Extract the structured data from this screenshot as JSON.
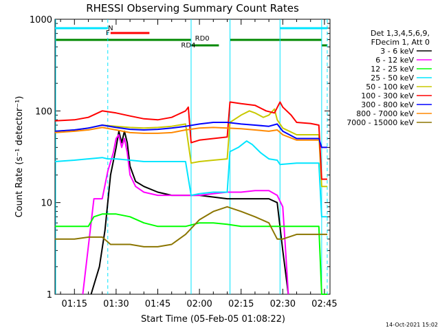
{
  "chart_data": {
    "type": "line",
    "title": "RHESSI Observing Summary Count Rates",
    "xlabel": "Start Time (05-Feb-05 01:08:22)",
    "ylabel": "Count Rate (s⁻¹ detector⁻¹)",
    "y_scale": "log",
    "ylim": [
      1,
      1000
    ],
    "xlim": [
      "01:08:22",
      "02:47:00"
    ],
    "x_ticks": [
      "01:15",
      "01:30",
      "01:45",
      "02:00",
      "02:15",
      "02:30",
      "02:45"
    ],
    "y_ticks": [
      "1",
      "10",
      "100",
      "1000"
    ],
    "legend_header": [
      "Det 1,3,4,5,6,9,",
      "FDecim 1, Att 0"
    ],
    "legend_position": "right",
    "timestamp": "14-Oct-2021 15:02",
    "flags": [
      {
        "label": "N",
        "color": "#00e5ff",
        "segments": [
          [
            "01:08",
            "01:27"
          ],
          [
            "02:29",
            "02:46"
          ]
        ]
      },
      {
        "label": "F",
        "color": "#ff0000",
        "segments": [
          [
            "01:28",
            "01:42"
          ]
        ]
      },
      {
        "label": "RD0",
        "color": "#008800",
        "segments": [
          [
            "01:08",
            "01:57"
          ],
          [
            "02:11",
            "02:44"
          ]
        ]
      },
      {
        "label": "RD4",
        "color": "#008800",
        "segments": [
          [
            "01:57",
            "02:07"
          ],
          [
            "02:44",
            "02:46"
          ]
        ]
      }
    ],
    "series": [
      {
        "name": "3 - 6 keV",
        "color": "#000000",
        "x": [
          "01:21",
          "01:24",
          "01:26",
          "01:28",
          "01:30",
          "01:31",
          "01:32",
          "01:33",
          "01:34",
          "01:35",
          "01:37",
          "01:40",
          "01:45",
          "01:50",
          "01:55",
          "02:00",
          "02:05",
          "02:10",
          "02:15",
          "02:20",
          "02:25",
          "02:28",
          "02:30",
          "02:32"
        ],
        "y": [
          1,
          2,
          5,
          20,
          40,
          60,
          45,
          60,
          45,
          25,
          17,
          15,
          13,
          12,
          12,
          12,
          11.5,
          11,
          11,
          11,
          11,
          10,
          3,
          1
        ]
      },
      {
        "name": "6 - 12 keV",
        "color": "#ff00ff",
        "x": [
          "01:18",
          "01:22",
          "01:25",
          "01:27",
          "01:29",
          "01:30",
          "01:31",
          "01:32",
          "01:33",
          "01:34",
          "01:35",
          "01:37",
          "01:40",
          "01:45",
          "01:50",
          "01:55",
          "02:00",
          "02:05",
          "02:10",
          "02:15",
          "02:20",
          "02:25",
          "02:28",
          "02:30",
          "02:31",
          "02:32"
        ],
        "y": [
          1,
          11,
          11,
          22,
          35,
          50,
          55,
          40,
          50,
          35,
          20,
          15,
          13,
          12,
          12,
          12,
          12,
          12.5,
          13,
          13,
          13.5,
          13.5,
          12,
          9,
          3,
          1
        ]
      },
      {
        "name": "12 - 25 keV",
        "color": "#00ff00",
        "x": [
          "01:08",
          "01:15",
          "01:20",
          "01:22",
          "01:25",
          "01:30",
          "01:35",
          "01:40",
          "01:45",
          "01:50",
          "01:55",
          "02:00",
          "02:05",
          "02:10",
          "02:15",
          "02:20",
          "02:25",
          "02:28",
          "02:30",
          "02:40",
          "02:43",
          "02:44",
          "02:46"
        ],
        "y": [
          5.5,
          5.5,
          5.5,
          7,
          7.5,
          7.5,
          7,
          6,
          5.5,
          5.5,
          5.5,
          6,
          6,
          5.8,
          5.5,
          5.5,
          5.5,
          5.5,
          5.5,
          5.5,
          5.5,
          1,
          1
        ]
      },
      {
        "name": "25 - 50 keV",
        "color": "#00e5ff",
        "x": [
          "01:08",
          "01:15",
          "01:20",
          "01:25",
          "01:27",
          "01:30",
          "01:35",
          "01:40",
          "01:45",
          "01:50",
          "01:55",
          "01:57",
          "02:00",
          "02:05",
          "02:10",
          "02:11",
          "02:14",
          "02:17",
          "02:19",
          "02:22",
          "02:25",
          "02:28",
          "02:29",
          "02:35",
          "02:40",
          "02:43",
          "02:44",
          "02:46"
        ],
        "y": [
          28,
          29,
          30,
          31,
          30,
          30,
          29,
          28,
          28,
          28,
          28,
          12,
          12.5,
          13,
          13,
          36,
          40,
          47,
          43,
          35,
          30,
          29,
          26,
          27,
          27,
          27,
          7,
          7
        ]
      },
      {
        "name": "50 - 100 keV",
        "color": "#c8c800",
        "x": [
          "01:08",
          "01:15",
          "01:20",
          "01:25",
          "01:30",
          "01:35",
          "01:40",
          "01:45",
          "01:50",
          "01:55",
          "01:57",
          "02:00",
          "02:05",
          "02:10",
          "02:11",
          "02:15",
          "02:18",
          "02:20",
          "02:23",
          "02:25",
          "02:27",
          "02:28",
          "02:30",
          "02:35",
          "02:40",
          "02:43",
          "02:44",
          "02:46"
        ],
        "y": [
          60,
          62,
          65,
          70,
          68,
          66,
          65,
          66,
          68,
          72,
          27,
          28,
          29,
          30,
          75,
          90,
          100,
          95,
          85,
          90,
          105,
          80,
          65,
          55,
          55,
          55,
          15,
          15
        ]
      },
      {
        "name": "100 - 300 keV",
        "color": "#ff0000",
        "x": [
          "01:08",
          "01:15",
          "01:20",
          "01:25",
          "01:30",
          "01:35",
          "01:40",
          "01:45",
          "01:50",
          "01:55",
          "01:56",
          "01:57",
          "02:00",
          "02:05",
          "02:10",
          "02:11",
          "02:15",
          "02:20",
          "02:24",
          "02:27",
          "02:29",
          "02:30",
          "02:33",
          "02:35",
          "02:40",
          "02:43",
          "02:44",
          "02:46"
        ],
        "y": [
          78,
          80,
          85,
          100,
          95,
          88,
          82,
          80,
          85,
          100,
          110,
          45,
          48,
          50,
          52,
          125,
          120,
          115,
          100,
          95,
          125,
          110,
          90,
          75,
          73,
          70,
          18,
          18
        ]
      },
      {
        "name": "300 - 800 keV",
        "color": "#0000ff",
        "x": [
          "01:08",
          "01:15",
          "01:20",
          "01:25",
          "01:30",
          "01:35",
          "01:40",
          "01:45",
          "01:50",
          "01:55",
          "02:00",
          "02:05",
          "02:10",
          "02:15",
          "02:20",
          "02:25",
          "02:28",
          "02:30",
          "02:35",
          "02:40",
          "02:43",
          "02:44",
          "02:46"
        ],
        "y": [
          60,
          62,
          65,
          70,
          66,
          63,
          62,
          63,
          65,
          68,
          72,
          75,
          75,
          72,
          70,
          68,
          72,
          60,
          50,
          50,
          50,
          40,
          40
        ]
      },
      {
        "name": "800 - 7000 keV",
        "color": "#ff8800",
        "x": [
          "01:08",
          "01:15",
          "01:20",
          "01:25",
          "01:30",
          "01:35",
          "01:40",
          "01:45",
          "01:50",
          "01:55",
          "02:00",
          "02:05",
          "02:10",
          "02:15",
          "02:20",
          "02:25",
          "02:28",
          "02:30",
          "02:35",
          "02:40",
          "02:43"
        ],
        "y": [
          58,
          60,
          62,
          66,
          62,
          58,
          57,
          57,
          58,
          62,
          65,
          66,
          65,
          64,
          62,
          60,
          62,
          55,
          48,
          48,
          48
        ]
      },
      {
        "name": "7000 - 15000 keV",
        "color": "#8b7500",
        "x": [
          "01:08",
          "01:15",
          "01:20",
          "01:25",
          "01:28",
          "01:30",
          "01:35",
          "01:40",
          "01:45",
          "01:50",
          "01:55",
          "02:00",
          "02:05",
          "02:10",
          "02:15",
          "02:20",
          "02:25",
          "02:28",
          "02:30",
          "02:35",
          "02:40",
          "02:43",
          "02:46"
        ],
        "y": [
          4,
          4,
          4.2,
          4.2,
          3.5,
          3.5,
          3.5,
          3.3,
          3.3,
          3.5,
          4.5,
          6.5,
          8,
          9,
          8,
          7,
          6,
          4,
          4,
          4.5,
          4.5,
          4.5,
          4.5
        ]
      }
    ]
  }
}
